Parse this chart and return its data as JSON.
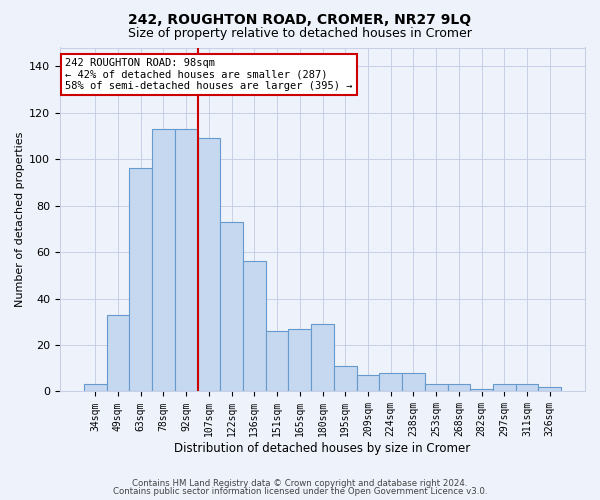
{
  "title1": "242, ROUGHTON ROAD, CROMER, NR27 9LQ",
  "title2": "Size of property relative to detached houses in Cromer",
  "xlabel": "Distribution of detached houses by size in Cromer",
  "ylabel": "Number of detached properties",
  "categories": [
    "34sqm",
    "49sqm",
    "63sqm",
    "78sqm",
    "92sqm",
    "107sqm",
    "122sqm",
    "136sqm",
    "151sqm",
    "165sqm",
    "180sqm",
    "195sqm",
    "209sqm",
    "224sqm",
    "238sqm",
    "253sqm",
    "268sqm",
    "282sqm",
    "297sqm",
    "311sqm",
    "326sqm"
  ],
  "values": [
    3,
    33,
    96,
    113,
    113,
    109,
    73,
    56,
    26,
    27,
    29,
    11,
    7,
    8,
    8,
    3,
    3,
    1,
    3,
    3,
    2
  ],
  "bar_color": "#c5d8f0",
  "bar_edge_color": "#6699cc",
  "vline_x": 4.5,
  "vline_color": "#cc0000",
  "annotation_line1": "242 ROUGHTON ROAD: 98sqm",
  "annotation_line2": "← 42% of detached houses are smaller (287)",
  "annotation_line3": "58% of semi-detached houses are larger (395) →",
  "annotation_box_color": "white",
  "annotation_box_edge_color": "#cc0000",
  "ylim": [
    0,
    148
  ],
  "yticks": [
    0,
    20,
    40,
    60,
    80,
    100,
    120,
    140
  ],
  "footer1": "Contains HM Land Registry data © Crown copyright and database right 2024.",
  "footer2": "Contains public sector information licensed under the Open Government Licence v3.0.",
  "bg_color": "#eef2fb",
  "plot_bg_color": "#eef2fb",
  "grid_color": "#c8d0e8",
  "title1_fontsize": 10,
  "title2_fontsize": 9
}
